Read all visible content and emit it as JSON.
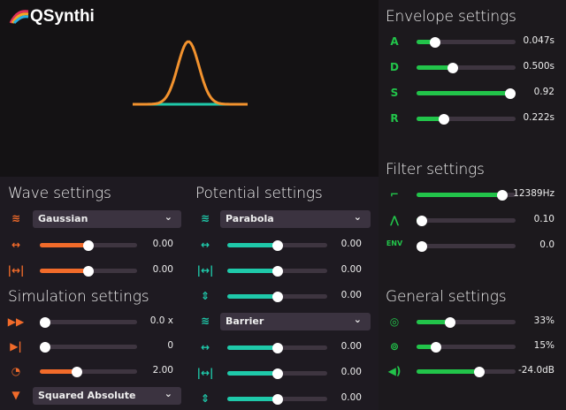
{
  "app": {
    "name": "QSynthi"
  },
  "colors": {
    "wave": "#f26b2a",
    "potential": "#1fc9aa",
    "envelope": "#22c44a",
    "graph_left": "#f0583a",
    "graph_right": "#f5a623",
    "graph_teal": "#1fc9aa"
  },
  "wave": {
    "title": "Wave settings",
    "type": "Gaussian",
    "sliders": [
      {
        "icon": "move-horizontal-icon",
        "value": "0.00",
        "level": 0.5
      },
      {
        "icon": "width-icon",
        "value": "0.00",
        "level": 0.5
      }
    ]
  },
  "simulation": {
    "title": "Simulation settings",
    "sliders": [
      {
        "icon": "fast-forward-icon",
        "value": "0.0 x",
        "level": 0
      },
      {
        "icon": "step-icon",
        "value": "0",
        "level": 0
      },
      {
        "icon": "gauge-icon",
        "value": "2.00",
        "level": 0.38
      }
    ],
    "measurement": "Squared Absolute"
  },
  "potential": {
    "title": "Potential settings",
    "groups": [
      {
        "type": "Parabola",
        "sliders": [
          {
            "value": "0.00",
            "level": 0.5
          },
          {
            "value": "0.00",
            "level": 0.5
          },
          {
            "value": "0.00",
            "level": 0.5
          }
        ]
      },
      {
        "type": "Barrier",
        "sliders": [
          {
            "value": "0.00",
            "level": 0.5
          },
          {
            "value": "0.00",
            "level": 0.5
          },
          {
            "value": "0.00",
            "level": 0.5
          }
        ]
      }
    ]
  },
  "envelope": {
    "title": "Envelope settings",
    "sliders": [
      {
        "label": "A",
        "value": "0.047s",
        "level": 0.19
      },
      {
        "label": "D",
        "value": "0.500s",
        "level": 0.37
      },
      {
        "label": "S",
        "value": "0.92",
        "level": 0.95
      },
      {
        "label": "R",
        "value": "0.222s",
        "level": 0.28
      }
    ]
  },
  "filter": {
    "title": "Filter settings",
    "sliders": [
      {
        "icon": "lowpass-icon",
        "value": "12389Hz",
        "level": 0.87
      },
      {
        "icon": "resonance-icon",
        "value": "0.10",
        "level": 0.02
      },
      {
        "label": "ENV",
        "value": "0.0",
        "level": 0
      }
    ]
  },
  "general": {
    "title": "General settings",
    "sliders": [
      {
        "icon": "stereo-icon",
        "value": "33%",
        "level": 0.34
      },
      {
        "icon": "voices-icon",
        "value": "15%",
        "level": 0.2
      },
      {
        "icon": "volume-icon",
        "value": "-24.0dB",
        "level": 0.63
      }
    ]
  }
}
